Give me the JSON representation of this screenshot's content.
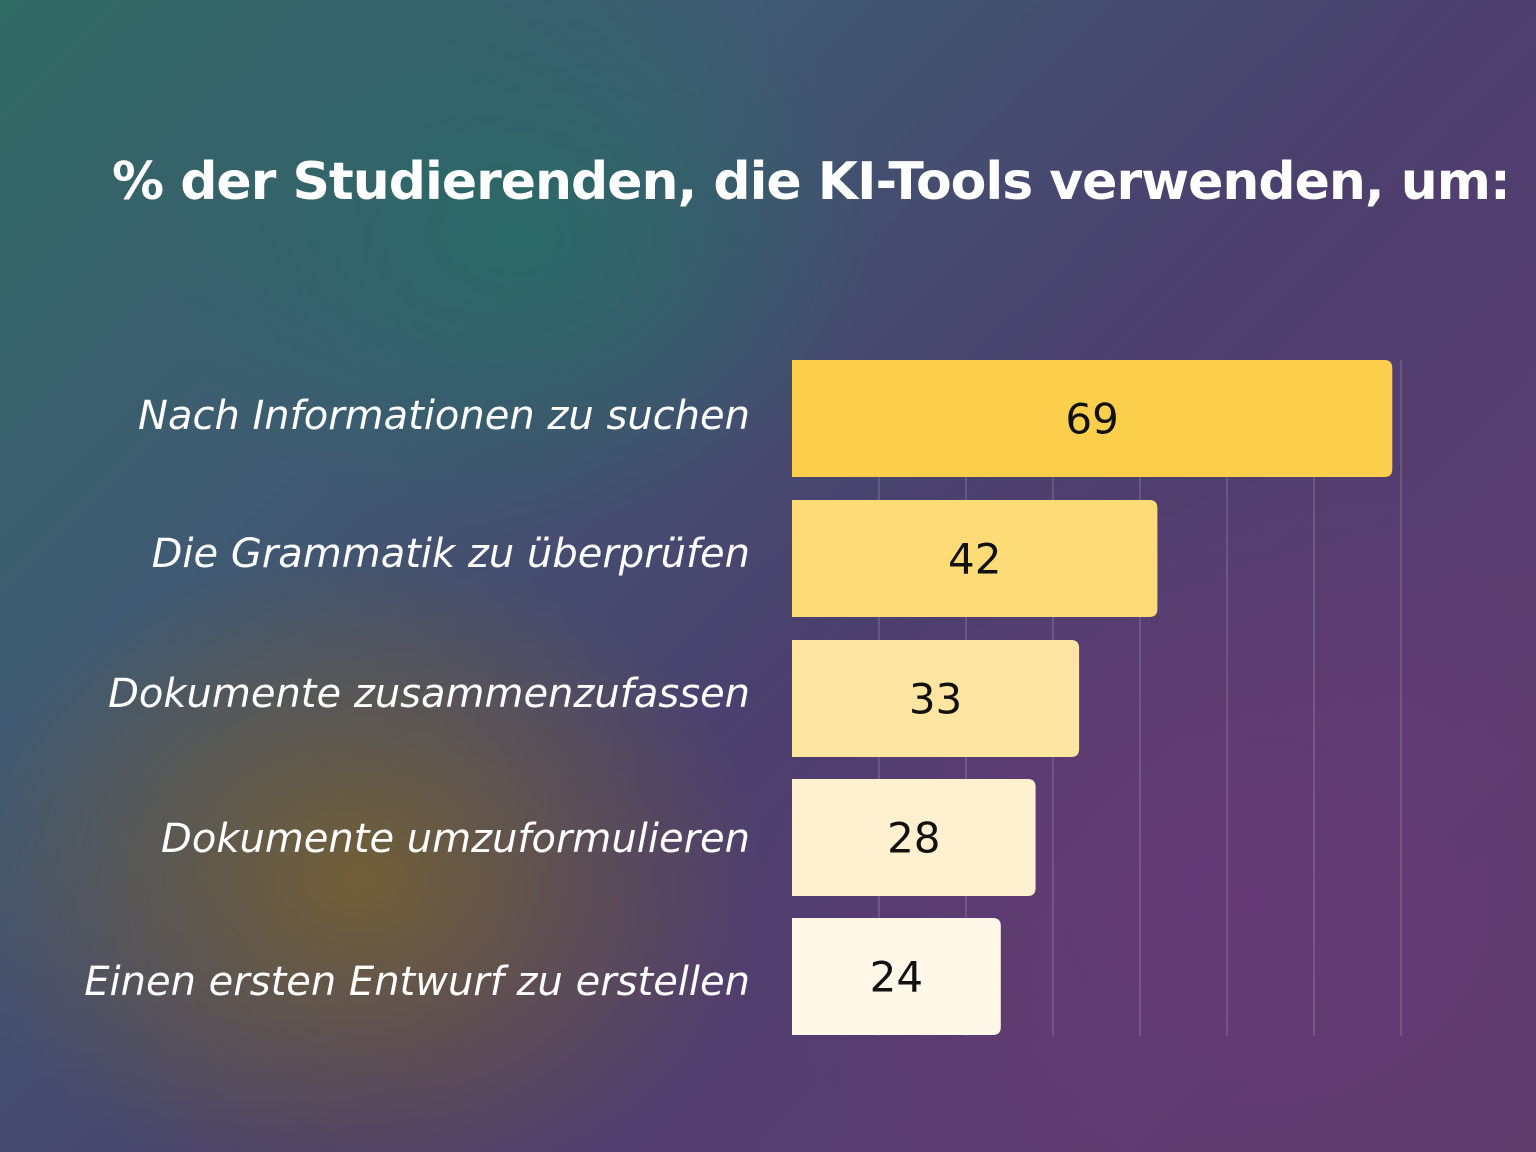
{
  "chart_data": {
    "type": "bar",
    "orientation": "horizontal",
    "title": "% der Studierenden, die KI-Tools verwenden, um:",
    "categories": [
      "Nach Informationen zu suchen",
      "Die Grammatik zu überprüfen",
      "Dokumente zusammenzufassen",
      "Dokumente umzuformulieren",
      "Einen ersten Entwurf zu erstellen"
    ],
    "values": [
      69,
      42,
      33,
      28,
      24
    ],
    "value_labels": [
      "69",
      "42",
      "33",
      "28",
      "24"
    ],
    "bar_colors": [
      "#fbcf4c",
      "#fddc78",
      "#fee6a2",
      "#fff0cf",
      "#fff8e8"
    ],
    "xlim": [
      0,
      70
    ],
    "grid": true,
    "xlabel": "",
    "ylabel": ""
  }
}
